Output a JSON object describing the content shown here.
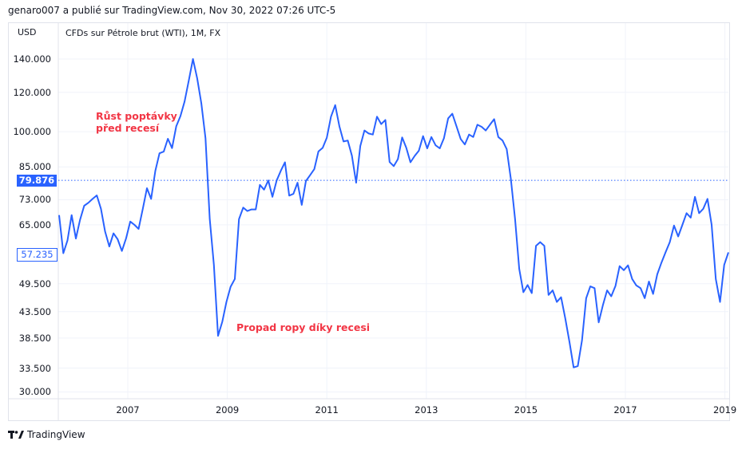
{
  "header": {
    "text": "genaro007 a publié sur TradingView.com, Nov 30, 2022 07:26 UTC-5"
  },
  "currency": "USD",
  "legend": "CFDs sur Pétrole brut (WTI), 1M, FX",
  "footer": {
    "brand": "TradingView",
    "logo": "tradingview-logo"
  },
  "colors": {
    "line": "#2962ff",
    "annotation": "#f23645",
    "grid": "#f0f3fa"
  },
  "chart_data": {
    "type": "line",
    "title": "CFDs sur Pétrole brut (WTI), 1M, FX",
    "ylabel": "USD",
    "yscale": "log",
    "ylim": [
      28.5,
      152
    ],
    "y_ticks": [
      140,
      120,
      100,
      85,
      73,
      65,
      49.5,
      43.5,
      38.5,
      33.5,
      30
    ],
    "y_tick_labels": [
      "140.000",
      "120.000",
      "100.000",
      "85.000",
      "73.000",
      "65.000",
      "49.500",
      "43.500",
      "38.500",
      "33.500",
      "30.000"
    ],
    "x_ticks": [
      2007,
      2009,
      2011,
      2013,
      2015,
      2017,
      2019
    ],
    "x_tick_labels": [
      "2007",
      "2009",
      "2011",
      "2013",
      "2015",
      "2017",
      "2019"
    ],
    "xlim": [
      2005.6,
      2019.1
    ],
    "x_start": 2005.62,
    "x_end": 2019.07,
    "frequency": "monthly",
    "grid": true,
    "last_price": {
      "value": 79.876,
      "label": "79.876"
    },
    "crosshair_price": {
      "value": 57.235,
      "label": "57.235"
    },
    "annotations": [
      {
        "text_lines": [
          "Růst poptávky",
          "před recesí"
        ]
      },
      {
        "text_lines": [
          "Propad ropy díky recesi"
        ]
      }
    ],
    "series": [
      {
        "name": "WTI",
        "values": [
          68,
          57,
          60.5,
          68,
          61,
          66.5,
          71,
          72,
          73.3,
          74.5,
          70,
          63,
          58.8,
          62.5,
          60.8,
          57.6,
          61,
          66,
          65,
          63.8,
          70,
          77,
          73.3,
          83.5,
          90.5,
          91.2,
          96.8,
          92.7,
          102.6,
          107.5,
          115,
          126.8,
          140,
          128,
          114,
          97,
          66.8,
          54,
          38.9,
          41.5,
          45.5,
          48.8,
          50.6,
          66.7,
          70.4,
          69.3,
          69.8,
          69.8,
          78.2,
          76.5,
          79.8,
          74,
          79.8,
          83.5,
          86.8,
          74.4,
          75,
          79,
          71.3,
          79.6,
          81.8,
          84.1,
          91.3,
          92.8,
          97.3,
          107.2,
          113.1,
          102.6,
          95.6,
          96,
          89.5,
          79,
          93.6,
          100.6,
          99.2,
          98.7,
          107.2,
          103.6,
          105.6,
          86.9,
          85.3,
          88.1,
          97.4,
          92.8,
          86.8,
          89.4,
          91.6,
          98,
          92.6,
          97.6,
          93.9,
          92.6,
          97,
          106.4,
          108.7,
          102.6,
          96.7,
          94.3,
          98.7,
          97.6,
          103.3,
          102.3,
          100.6,
          103.3,
          106,
          97.6,
          96,
          92.3,
          80.4,
          66.7,
          53,
          47.6,
          49.2,
          47.4,
          59,
          60,
          59,
          47,
          48,
          45.5,
          46.5,
          42.2,
          37.8,
          33.6,
          33.8,
          38.1,
          46.3,
          48.9,
          48.5,
          41.4,
          44.8,
          48,
          46.7,
          49,
          53.7,
          52.7,
          53.9,
          50.6,
          49.1,
          48.5,
          46.3,
          50,
          47.2,
          51.7,
          54.6,
          57.3,
          60,
          64.8,
          61.6,
          65,
          68.6,
          67.2,
          74,
          68.6,
          70,
          73.3,
          65,
          50.6,
          45.5,
          54,
          57.235
        ]
      }
    ]
  }
}
